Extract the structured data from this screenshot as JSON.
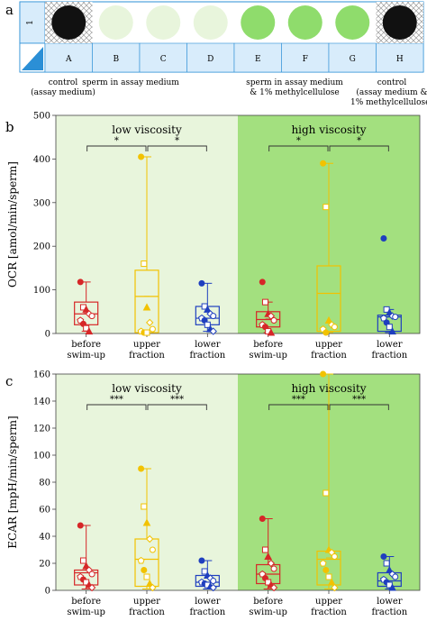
{
  "panel_a": {
    "letter": "a",
    "row_number": "1",
    "wells": [
      {
        "col": "A",
        "state": "black"
      },
      {
        "col": "B",
        "state": "pale"
      },
      {
        "col": "C",
        "state": "pale"
      },
      {
        "col": "D",
        "state": "pale"
      },
      {
        "col": "E",
        "state": "green"
      },
      {
        "col": "F",
        "state": "green"
      },
      {
        "col": "G",
        "state": "green"
      },
      {
        "col": "H",
        "state": "black"
      }
    ],
    "captions": [
      {
        "lines": [
          "control",
          "(assay medium)"
        ]
      },
      {
        "lines": [
          "sperm in assay medium"
        ]
      },
      {
        "lines": [
          "sperm in assay medium",
          "& 1% methylcellulose"
        ]
      },
      {
        "lines": [
          "control",
          "(assay medium &",
          "1% methylcellulose)"
        ]
      }
    ],
    "colors": {
      "black": "#111111",
      "pale": "#e8f5dc",
      "green": "#8fdc6c",
      "label_bar": "#d8ecfb",
      "corner": "#2b8fd6"
    }
  },
  "chart_data": [
    {
      "type": "box",
      "panel": "b",
      "ylabel": "OCR [amol/min/sperm]",
      "ylim": [
        0,
        500
      ],
      "yticks": [
        0,
        100,
        200,
        300,
        400,
        500
      ],
      "regions": [
        {
          "label": "low viscosity",
          "color": "#e8f5dc"
        },
        {
          "label": "high viscosity",
          "color": "#a3e07f"
        }
      ],
      "categories": [
        "before\nswim-up",
        "upper\nfraction",
        "lower\nfraction",
        "before\nswim-up",
        "upper\nfraction",
        "lower\nfraction"
      ],
      "colors": [
        "#d62728",
        "#f2c200",
        "#1f3fbf",
        "#d62728",
        "#f2c200",
        "#1f3fbf"
      ],
      "boxes": [
        {
          "q1": 20,
          "median": 45,
          "q3": 72,
          "mean": 46,
          "whislo": 5,
          "whishi": 118
        },
        {
          "q1": 2,
          "median": 85,
          "q3": 145,
          "mean": 85,
          "whislo": 2,
          "whishi": 405
        },
        {
          "q1": 20,
          "median": 35,
          "q3": 62,
          "mean": 35,
          "whislo": 5,
          "whishi": 115
        },
        {
          "q1": 15,
          "median": 32,
          "q3": 50,
          "mean": 33,
          "whislo": 2,
          "whishi": 72
        },
        {
          "q1": 5,
          "median": 92,
          "q3": 155,
          "mean": 92,
          "whislo": 2,
          "whishi": 390
        },
        {
          "q1": 5,
          "median": 38,
          "q3": 42,
          "mean": 38,
          "whislo": 2,
          "whishi": 55
        }
      ],
      "points": [
        [
          118,
          60,
          55,
          45,
          40,
          30,
          22,
          12,
          5
        ],
        [
          405,
          160,
          60,
          25,
          10,
          5,
          2,
          2
        ],
        [
          115,
          62,
          55,
          45,
          40,
          35,
          30,
          20,
          10,
          5
        ],
        [
          118,
          72,
          45,
          40,
          30,
          20,
          15,
          5,
          2
        ],
        [
          390,
          290,
          30,
          20,
          15,
          10,
          2
        ],
        [
          218,
          55,
          48,
          40,
          38,
          35,
          25,
          15,
          5
        ]
      ],
      "significance": [
        {
          "from": 0,
          "to": 1,
          "label": "*"
        },
        {
          "from": 1,
          "to": 2,
          "label": "*"
        },
        {
          "from": 3,
          "to": 4,
          "label": "*"
        },
        {
          "from": 4,
          "to": 5,
          "label": "*"
        }
      ]
    },
    {
      "type": "box",
      "panel": "c",
      "ylabel": "ECAR [mpH/min/sperm]",
      "ylim": [
        0,
        160
      ],
      "yticks": [
        0,
        20,
        40,
        60,
        80,
        100,
        120,
        140,
        160
      ],
      "regions": [
        {
          "label": "low viscosity",
          "color": "#e8f5dc"
        },
        {
          "label": "high viscosity",
          "color": "#a3e07f"
        }
      ],
      "categories": [
        "before\nswim-up",
        "upper\nfraction",
        "lower\nfraction",
        "before\nswim-up",
        "upper\nfraction",
        "lower\nfraction"
      ],
      "colors": [
        "#d62728",
        "#f2c200",
        "#1f3fbf",
        "#d62728",
        "#f2c200",
        "#1f3fbf"
      ],
      "boxes": [
        {
          "q1": 4,
          "median": 13,
          "q3": 15,
          "mean": 13,
          "whislo": 1,
          "whishi": 48
        },
        {
          "q1": 3,
          "median": 23,
          "q3": 38,
          "mean": 23,
          "whislo": 1,
          "whishi": 90
        },
        {
          "q1": 3,
          "median": 6,
          "q3": 11,
          "mean": 6,
          "whislo": 1,
          "whishi": 22
        },
        {
          "q1": 5,
          "median": 12,
          "q3": 19,
          "mean": 12,
          "whislo": 1,
          "whishi": 53
        },
        {
          "q1": 4,
          "median": 23,
          "q3": 29,
          "mean": 24,
          "whislo": 1,
          "whishi": 160
        },
        {
          "q1": 3,
          "median": 7,
          "q3": 13,
          "mean": 7,
          "whislo": 1,
          "whishi": 25
        }
      ],
      "points": [
        [
          48,
          22,
          18,
          15,
          12,
          10,
          8,
          6,
          4,
          2
        ],
        [
          90,
          62,
          50,
          38,
          30,
          22,
          15,
          10,
          5,
          2
        ],
        [
          22,
          14,
          11,
          9,
          7,
          6,
          5,
          4,
          3,
          2
        ],
        [
          53,
          30,
          25,
          20,
          16,
          12,
          9,
          6,
          4,
          2
        ],
        [
          160,
          72,
          30,
          28,
          25,
          20,
          15,
          10,
          6,
          2
        ],
        [
          25,
          20,
          15,
          12,
          10,
          8,
          6,
          4,
          2
        ]
      ],
      "significance": [
        {
          "from": 0,
          "to": 1,
          "label": "***"
        },
        {
          "from": 1,
          "to": 2,
          "label": "***"
        },
        {
          "from": 3,
          "to": 4,
          "label": "***"
        },
        {
          "from": 4,
          "to": 5,
          "label": "***"
        }
      ]
    }
  ]
}
